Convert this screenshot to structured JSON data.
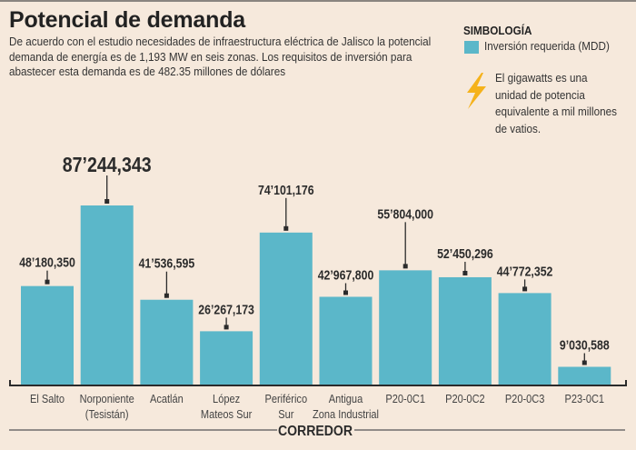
{
  "header": {
    "title": "Potencial de demanda",
    "subtitle": "De acuerdo con el estudio necesidades de infraestructura eléctrica de Jalisco la potencial demanda de energía es de 1,193 MW en seis zonas. Los requisitos de inversión para abastecer esta demanda es de 482.35 millones de dólares"
  },
  "legend": {
    "title": "SIMBOLOGÍA",
    "series_label": "Inversión requerida (MDD)",
    "series_color": "#5bb7c9",
    "note_icon": "lightning-bolt-icon",
    "note_color": "#f5b21b",
    "note": "El gigawatts es una unidad de potencia equivalente a mil millones de vatios."
  },
  "chart_data": {
    "type": "bar",
    "title": "Potencial de demanda",
    "xlabel": "CORREDOR",
    "ylabel": "",
    "ylim": [
      0,
      90000000
    ],
    "grid": false,
    "legend_position": "top-right",
    "categories": [
      [
        "El Salto"
      ],
      [
        "Norponiente",
        "(Tesistán)"
      ],
      [
        "Acatlán"
      ],
      [
        "López",
        "Mateos Sur"
      ],
      [
        "Periférico",
        "Sur"
      ],
      [
        "Antigua",
        "Zona Industrial"
      ],
      [
        "P20-0C1"
      ],
      [
        "P20-0C2"
      ],
      [
        "P20-0C3"
      ],
      [
        "P23-0C1"
      ]
    ],
    "series": [
      {
        "name": "Inversión requerida (MDD)",
        "color": "#5bb7c9",
        "values": [
          48180350,
          87244343,
          41536595,
          26267173,
          74101176,
          42967800,
          55804000,
          52450296,
          44772352,
          9030588
        ],
        "labels": [
          "48’180,350",
          "87’244,343",
          "41’536,595",
          "26’267,173",
          "74’101,176",
          "42’967,800",
          "55’804,000",
          "52’450,296",
          "44’772,352",
          "9’030,588"
        ]
      }
    ]
  }
}
